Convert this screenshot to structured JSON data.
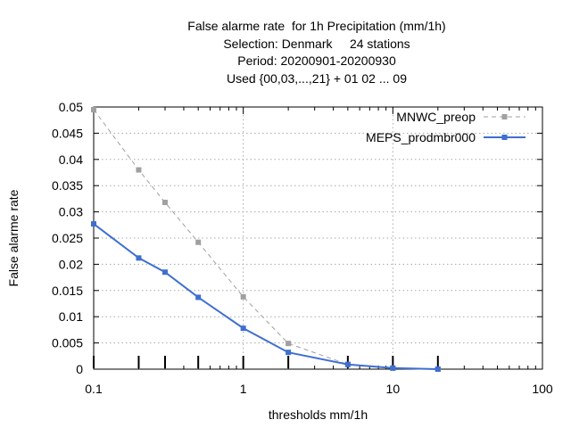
{
  "chart_data": {
    "type": "line",
    "title": "False alarme rate  for 1h Precipitation (mm/1h)",
    "subtitle_lines": [
      "Selection: Denmark     24 stations",
      "Period: 20200901-20200930",
      "Used {00,03,...,21} + 01 02 ... 09"
    ],
    "xlabel": "thresholds mm/1h",
    "ylabel": "False alarme rate",
    "x_scale": "log",
    "xlim": [
      0.1,
      100
    ],
    "ylim": [
      0,
      0.05
    ],
    "x_ticks": [
      0.1,
      1,
      10,
      100
    ],
    "x_tick_labels": [
      "0.1",
      "1",
      "10",
      "100"
    ],
    "y_ticks": [
      0,
      0.005,
      0.01,
      0.015,
      0.02,
      0.025,
      0.03,
      0.035,
      0.04,
      0.045,
      0.05
    ],
    "y_tick_labels": [
      "0",
      "0.005",
      "0.01",
      "0.015",
      "0.02",
      "0.025",
      "0.03",
      "0.035",
      "0.04",
      "0.045",
      "0.05"
    ],
    "grid": true,
    "legend_position": "top-right",
    "threshold_marks": [
      0.1,
      0.2,
      0.3,
      0.5,
      1,
      2,
      5,
      10,
      20
    ],
    "series": [
      {
        "name": "MNWC_preop",
        "color": "#a0a0a0",
        "dashed": true,
        "x": [
          0.1,
          0.2,
          0.3,
          0.5,
          1,
          2,
          5,
          10,
          20
        ],
        "y": [
          0.0495,
          0.038,
          0.0318,
          0.0242,
          0.0138,
          0.0049,
          0.0009,
          0.0002,
          0.0
        ]
      },
      {
        "name": "MEPS_prodmbr000",
        "color": "#3f6fcf",
        "dashed": false,
        "x": [
          0.1,
          0.2,
          0.3,
          0.5,
          1,
          2,
          5,
          10,
          20
        ],
        "y": [
          0.0277,
          0.0212,
          0.0185,
          0.0137,
          0.0078,
          0.0032,
          0.0009,
          0.0002,
          0.0
        ]
      }
    ]
  }
}
